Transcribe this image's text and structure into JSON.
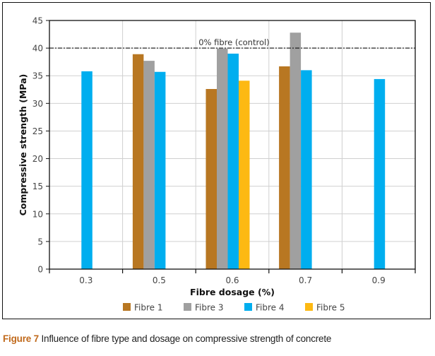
{
  "chart_data": {
    "type": "bar",
    "title": "",
    "xlabel": "Fibre dosage (%)",
    "ylabel": "Compressive strength (MPa)",
    "ylim": [
      0,
      45
    ],
    "yticks": [
      0,
      5,
      10,
      15,
      20,
      25,
      30,
      35,
      40,
      45
    ],
    "categories": [
      "0.3",
      "0.5",
      "0.6",
      "0.7",
      "0.9"
    ],
    "series": [
      {
        "name": "Fibre 1",
        "color": "#b87722",
        "values": [
          null,
          38.9,
          32.6,
          36.7,
          null
        ]
      },
      {
        "name": "Fibre 3",
        "color": "#a0a0a0",
        "values": [
          null,
          37.7,
          39.9,
          42.8,
          null
        ]
      },
      {
        "name": "Fibre 4",
        "color": "#00aeef",
        "values": [
          35.8,
          35.7,
          39.0,
          36.0,
          34.4
        ]
      },
      {
        "name": "Fibre 5",
        "color": "#fdb913",
        "values": [
          null,
          null,
          34.1,
          null,
          null
        ]
      }
    ],
    "reference_line": {
      "value": 40,
      "label": "0% fibre (control)",
      "style": "dash-dot"
    },
    "grid": true,
    "legend_position": "bottom"
  },
  "caption": {
    "figure_label": "Figure 7",
    "text": " Influence of fibre type and dosage on compressive strength of concrete"
  }
}
